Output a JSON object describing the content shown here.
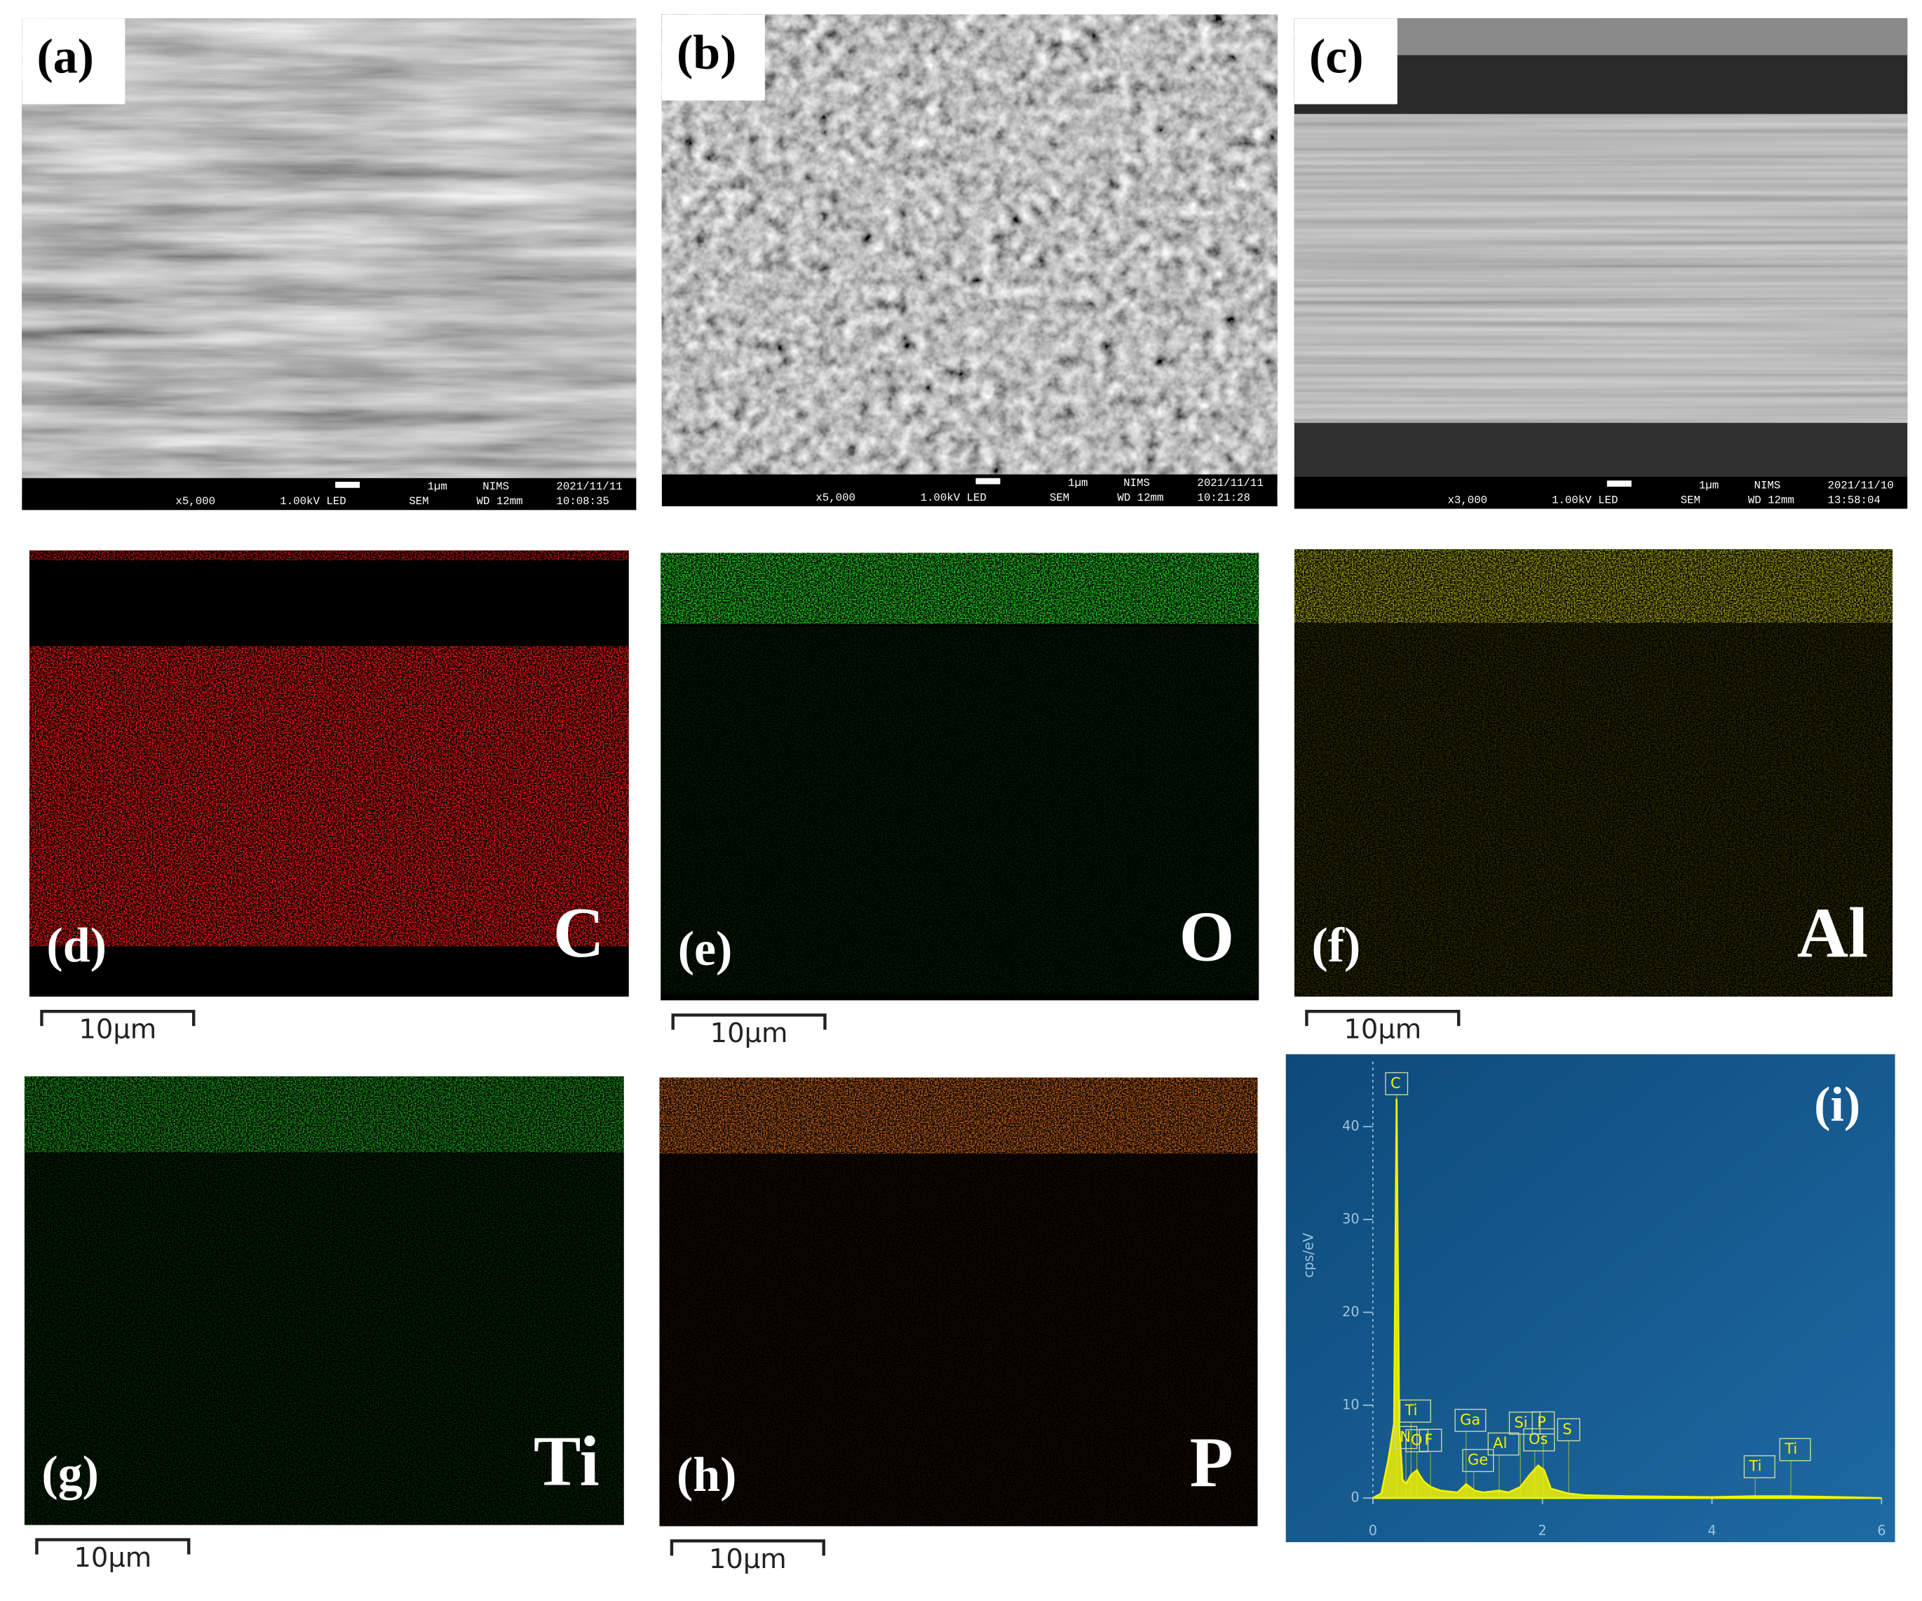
{
  "sem_panels": [
    {
      "label": "(a)",
      "scale": "1µm",
      "lab": "NIMS",
      "date": "2021/11/11",
      "mag": "x5,000",
      "voltage": "1.00kV LED",
      "mode": "SEM",
      "wd": "WD 12mm",
      "time": "10:08:35"
    },
    {
      "label": "(b)",
      "scale": "1µm",
      "lab": "NIMS",
      "date": "2021/11/11",
      "mag": "x5,000",
      "voltage": "1.00kV LED",
      "mode": "SEM",
      "wd": "WD 12mm",
      "time": "10:21:28"
    },
    {
      "label": "(c)",
      "scale": "1µm",
      "lab": "NIMS",
      "date": "2021/11/10",
      "mag": "x3,000",
      "voltage": "1.00kV LED",
      "mode": "SEM",
      "wd": "WD 12mm",
      "time": "13:58:04"
    }
  ],
  "maps": [
    {
      "label": "(d)",
      "element": "C",
      "scale": "10µm"
    },
    {
      "label": "(e)",
      "element": "O",
      "scale": "10µm"
    },
    {
      "label": "(f)",
      "element": "Al",
      "scale": "10µm"
    },
    {
      "label": "(g)",
      "element": "Ti",
      "scale": "10µm"
    },
    {
      "label": "(h)",
      "element": "P",
      "scale": "10µm"
    }
  ],
  "chart_data": {
    "type": "line",
    "label": "(i)",
    "y_label": "cps/eV",
    "color": "#f2f200",
    "x": [
      0,
      0.1,
      0.18,
      0.25,
      0.28,
      0.31,
      0.35,
      0.39,
      0.45,
      0.52,
      0.55,
      0.6,
      0.68,
      0.8,
      1.0,
      1.1,
      1.2,
      1.3,
      1.49,
      1.6,
      1.74,
      1.85,
      1.95,
      2.02,
      2.1,
      2.3,
      2.5,
      3,
      4,
      4.5,
      4.93,
      5.5,
      6
    ],
    "values": [
      0,
      0.5,
      4,
      8,
      43,
      8,
      2,
      1.5,
      2.5,
      3,
      2.5,
      1.8,
      1.2,
      0.8,
      0.6,
      1.5,
      0.8,
      0.6,
      0.8,
      0.6,
      1.2,
      2.5,
      3.5,
      3,
      1,
      0.5,
      0.3,
      0.2,
      0.1,
      0.2,
      0.2,
      0.1,
      0
    ],
    "xlim": [
      0,
      6
    ],
    "xticks": [
      0,
      2,
      4,
      6
    ],
    "ylim": [
      0,
      47
    ],
    "yticks": [
      0,
      10,
      20,
      30,
      40
    ],
    "peaks": [
      {
        "name": "C",
        "x": 0.28
      },
      {
        "name": "N",
        "x": 0.39
      },
      {
        "name": "Ti",
        "x": 0.45
      },
      {
        "name": "O",
        "x": 0.52
      },
      {
        "name": "F",
        "x": 0.68
      },
      {
        "name": "Ga",
        "x": 1.1
      },
      {
        "name": "Ge",
        "x": 1.19
      },
      {
        "name": "Al",
        "x": 1.49
      },
      {
        "name": "Si",
        "x": 1.74
      },
      {
        "name": "Os",
        "x": 1.91
      },
      {
        "name": "P",
        "x": 2.01
      },
      {
        "name": "S",
        "x": 2.31
      },
      {
        "name": "Ti",
        "x": 4.51
      },
      {
        "name": "Ti",
        "x": 4.93
      }
    ]
  }
}
